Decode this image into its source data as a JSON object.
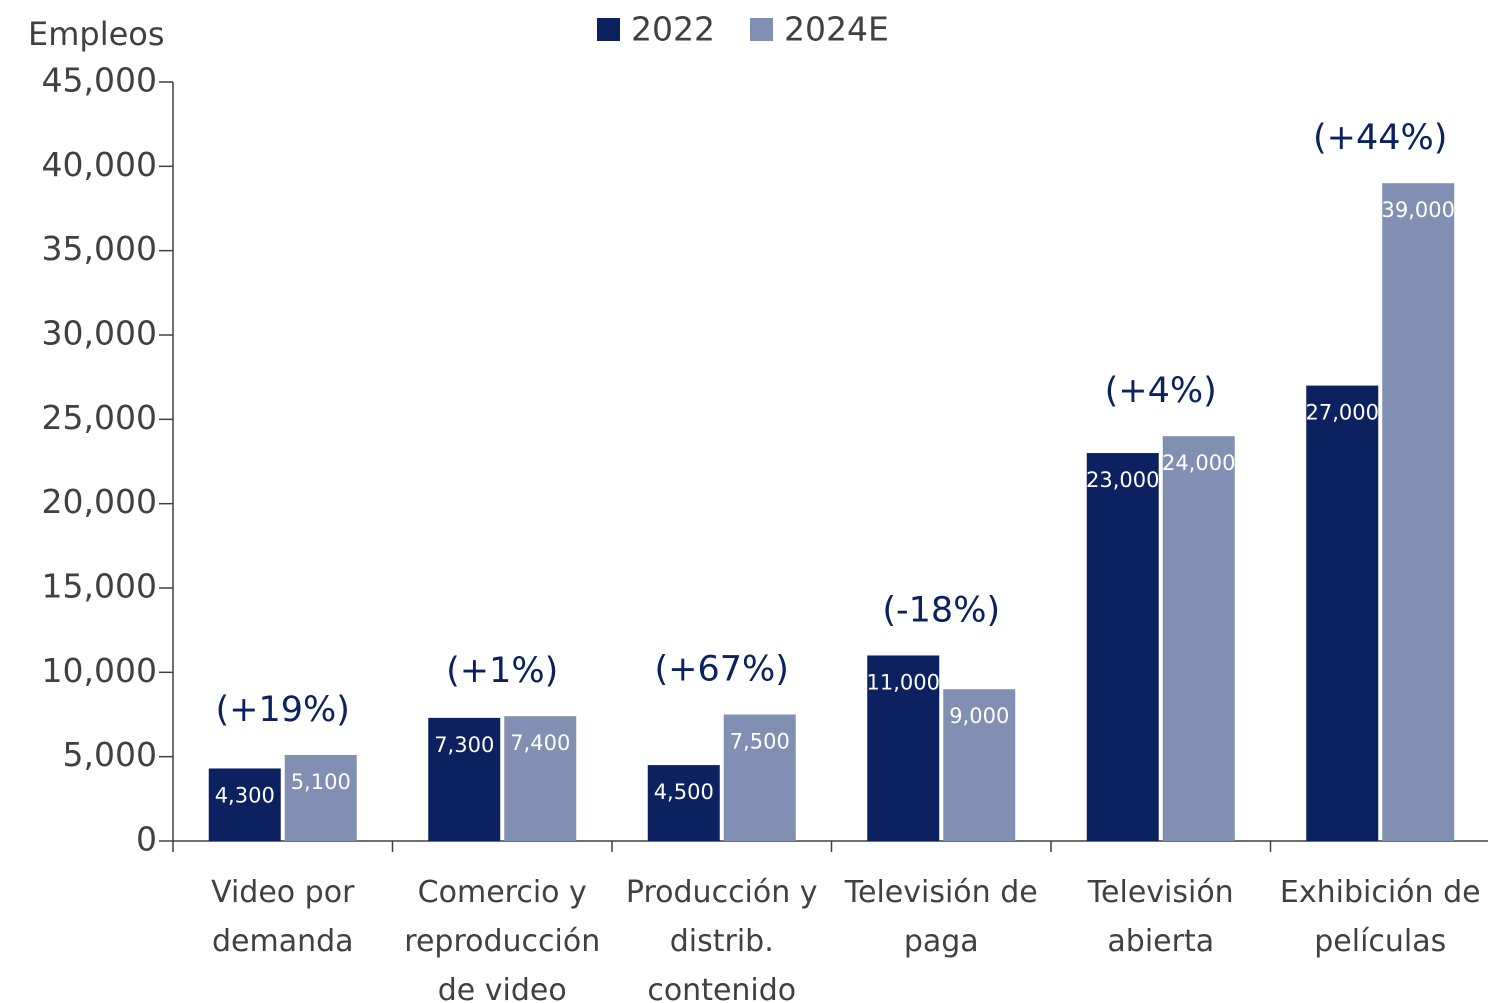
{
  "chart_data": {
    "type": "bar",
    "y_label": "Empleos",
    "categories": [
      "Video por\ndemanda",
      "Comercio y\nreproducción\nde video",
      "Producción y\ndistrib.\ncontenido",
      "Televisión de\npaga",
      "Televisión\nabierta",
      "Exhibición de\npelículas"
    ],
    "series": [
      {
        "name": "2022",
        "color": "#0b2160",
        "values": [
          4300,
          7300,
          4500,
          11000,
          23000,
          27000
        ],
        "value_labels": [
          "4,300",
          "7,300",
          "4,500",
          "11,000",
          "23,000",
          "27,000"
        ]
      },
      {
        "name": "2024E",
        "color": "#8190b2",
        "values": [
          5100,
          7400,
          7500,
          9000,
          24000,
          39000
        ],
        "value_labels": [
          "5,100",
          "7,400",
          "7,500",
          "9,000",
          "24,000",
          "39,000"
        ]
      }
    ],
    "annotations": [
      "(+19%)",
      "(+1%)",
      "(+67%)",
      "(-18%)",
      "(+4%)",
      "(+44%)"
    ],
    "ylim": [
      0,
      45000
    ],
    "yticks": [
      0,
      {
        "value": 5000,
        "label": "5,000"
      },
      {
        "value": 10000,
        "label": "10,000"
      },
      {
        "value": 15000,
        "label": "15,000"
      },
      {
        "value": 20000,
        "label": "20,000"
      },
      {
        "value": 25000,
        "label": "25,000"
      },
      {
        "value": 30000,
        "label": "30,000"
      },
      {
        "value": 35000,
        "label": "35,000"
      },
      {
        "value": 40000,
        "label": "40,000"
      },
      {
        "value": 45000,
        "label": "45,000"
      }
    ],
    "legend": "top"
  }
}
